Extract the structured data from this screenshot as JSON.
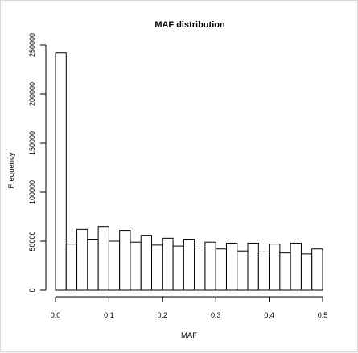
{
  "chart_data": {
    "type": "bar",
    "title": "MAF distribution",
    "xlabel": "MAF",
    "ylabel": "Frequency",
    "bin_width": 0.02,
    "bin_starts": [
      0.0,
      0.02,
      0.04,
      0.06,
      0.08,
      0.1,
      0.12,
      0.14,
      0.16,
      0.18,
      0.2,
      0.22,
      0.24,
      0.26,
      0.28,
      0.3,
      0.32,
      0.34,
      0.36,
      0.38,
      0.4,
      0.42,
      0.44,
      0.46,
      0.48
    ],
    "values": [
      242000,
      47000,
      62000,
      52000,
      65000,
      50000,
      61000,
      49000,
      56000,
      46000,
      53000,
      45000,
      52000,
      43000,
      49000,
      42000,
      48000,
      40000,
      48000,
      39000,
      47000,
      38000,
      48000,
      37000,
      42000
    ],
    "xlim": [
      0,
      0.5
    ],
    "ylim": [
      0,
      250000
    ],
    "x_ticks": [
      "0.0",
      "0.1",
      "0.2",
      "0.3",
      "0.4",
      "0.5"
    ],
    "y_ticks": [
      "0",
      "50000",
      "100000",
      "150000",
      "200000",
      "250000"
    ],
    "grid": false,
    "bar_fill": "#ffffff",
    "bar_stroke": "#000000"
  }
}
